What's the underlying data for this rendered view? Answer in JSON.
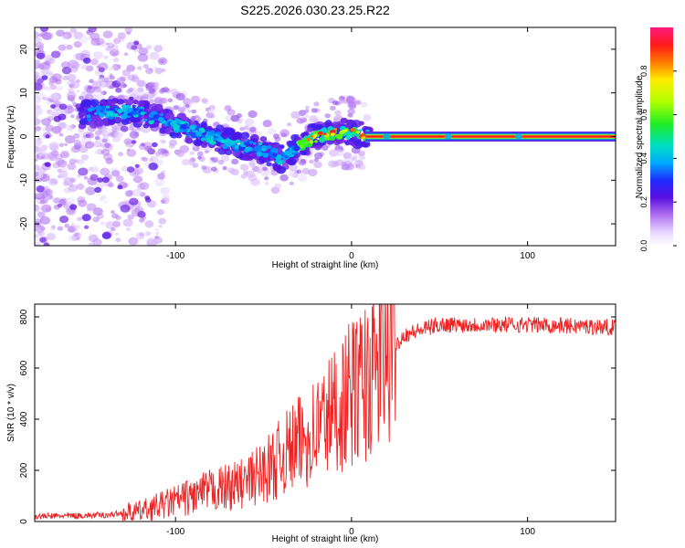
{
  "page": {
    "title": "S225.2026.030.23.25.R22"
  },
  "colors": {
    "line": "#ee2222",
    "axis": "#000000"
  },
  "chart_data": [
    {
      "type": "heatmap",
      "title": "S225.2026.030.23.25.R22",
      "xlabel": "Height of straight line (km)",
      "ylabel": "Frequency (Hz)",
      "xlim": [
        -180,
        150
      ],
      "ylim": [
        -25,
        25
      ],
      "x_ticks": [
        -100,
        0,
        100
      ],
      "y_ticks": [
        -20,
        -10,
        0,
        10,
        20
      ],
      "colorbar": {
        "label": "Normalized spectral amplitude",
        "range": [
          0,
          1
        ],
        "ticks": [
          "0.0",
          "0.2",
          "0.4",
          "0.6",
          "0.8"
        ]
      },
      "ridge": [
        {
          "x": -150,
          "y": 5
        },
        {
          "x": -125,
          "y": 6
        },
        {
          "x": -110,
          "y": 4
        },
        {
          "x": -95,
          "y": 2
        },
        {
          "x": -80,
          "y": 0
        },
        {
          "x": -65,
          "y": -2
        },
        {
          "x": -50,
          "y": -3
        },
        {
          "x": -40,
          "y": -5
        },
        {
          "x": -30,
          "y": -2
        },
        {
          "x": -20,
          "y": 0
        },
        {
          "x": -10,
          "y": 1
        },
        {
          "x": 0,
          "y": 1
        },
        {
          "x": 10,
          "y": 0
        },
        {
          "x": 150,
          "y": 0
        }
      ]
    },
    {
      "type": "line",
      "xlabel": "Height of straight line (km)",
      "ylabel": "SNR (10 * v/v)",
      "xlim": [
        -180,
        150
      ],
      "ylim": [
        0,
        850
      ],
      "x_ticks": [
        -100,
        0,
        100
      ],
      "y_ticks": [
        0,
        200,
        400,
        600,
        800
      ],
      "series": [
        {
          "name": "SNR",
          "envelope": [
            {
              "x": -180,
              "y": 20
            },
            {
              "x": -140,
              "y": 25
            },
            {
              "x": -120,
              "y": 40
            },
            {
              "x": -100,
              "y": 80
            },
            {
              "x": -80,
              "y": 120
            },
            {
              "x": -60,
              "y": 150
            },
            {
              "x": -45,
              "y": 220
            },
            {
              "x": -35,
              "y": 280
            },
            {
              "x": -25,
              "y": 330
            },
            {
              "x": -15,
              "y": 400
            },
            {
              "x": 0,
              "y": 500
            },
            {
              "x": 10,
              "y": 560
            },
            {
              "x": 20,
              "y": 650
            },
            {
              "x": 30,
              "y": 730
            },
            {
              "x": 50,
              "y": 770
            },
            {
              "x": 100,
              "y": 770
            },
            {
              "x": 150,
              "y": 760
            }
          ]
        }
      ]
    }
  ]
}
